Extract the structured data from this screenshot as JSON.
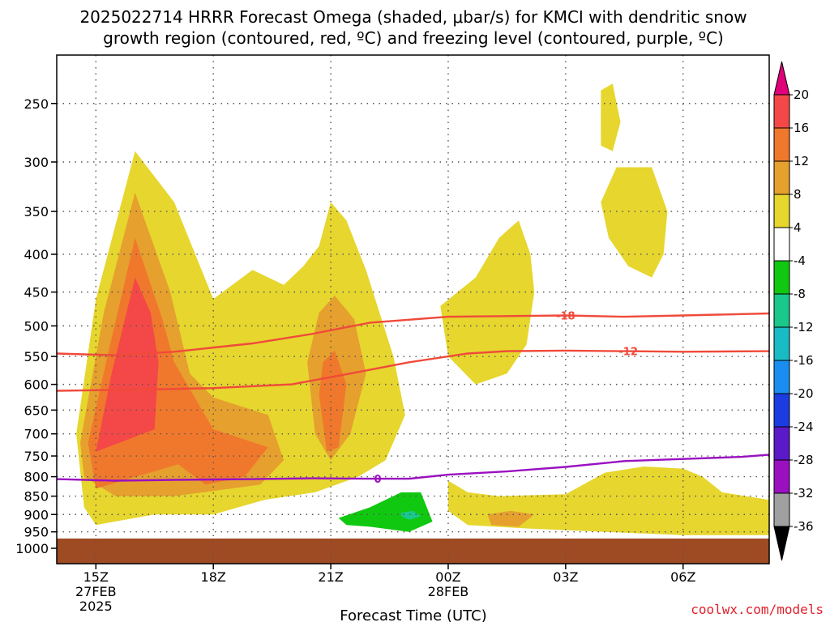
{
  "title_line1": "2025022714 HRRR Forecast Omega (shaded, μbar/s) for KMCI with dendritic snow",
  "title_line2": "growth region (contoured, red, ºC) and freezing level (contoured, purple, ºC)",
  "credit": "coolwx.com/models",
  "chart_data": {
    "type": "time-height cross section (filled contours)",
    "xlabel": "Forecast Time (UTC)",
    "ylabel": "",
    "x_ticks": [
      {
        "label": "15Z",
        "sub": [
          "27FEB",
          "2025"
        ],
        "hour": 15
      },
      {
        "label": "18Z",
        "sub": [],
        "hour": 18
      },
      {
        "label": "21Z",
        "sub": [],
        "hour": 21
      },
      {
        "label": "00Z",
        "sub": [
          "28FEB"
        ],
        "hour": 24
      },
      {
        "label": "03Z",
        "sub": [],
        "hour": 27
      },
      {
        "label": "06Z",
        "sub": [],
        "hour": 30
      }
    ],
    "xlim_hours": [
      14.0,
      32.2
    ],
    "y_ticks": [
      250,
      300,
      350,
      400,
      450,
      500,
      550,
      600,
      650,
      700,
      750,
      800,
      850,
      900,
      950,
      1000
    ],
    "ylim_hpa": [
      1000,
      215
    ],
    "grid": true,
    "colorbar": {
      "labels": [
        "20",
        "16",
        "12",
        "8",
        "4",
        "-4",
        "-8",
        "-12",
        "-16",
        "-20",
        "-24",
        "-28",
        "-32",
        "-36"
      ],
      "bins": [
        {
          "range": ">20",
          "color": "#e0007a"
        },
        {
          "range": "16-20",
          "color": "#f44848"
        },
        {
          "range": "12-16",
          "color": "#f0782c"
        },
        {
          "range": "8-12",
          "color": "#e6a02e"
        },
        {
          "range": "4-8",
          "color": "#e6d62e"
        },
        {
          "range": "-4-4",
          "color": "#ffffff"
        },
        {
          "range": "-8--4",
          "color": "#11c811"
        },
        {
          "range": "-12--8",
          "color": "#19c88a"
        },
        {
          "range": "-16--12",
          "color": "#19bcc4"
        },
        {
          "range": "-20--16",
          "color": "#1a8ef0"
        },
        {
          "range": "-24--20",
          "color": "#1a3ce0"
        },
        {
          "range": "-28--24",
          "color": "#5a1ac8"
        },
        {
          "range": "-32--28",
          "color": "#9a10c0"
        },
        {
          "range": "-36--32",
          "color": "#a0a0a0"
        },
        {
          "range": "<-36",
          "color": "#000000"
        }
      ]
    },
    "contours": [
      {
        "label": "-18",
        "color": "#f04a3a",
        "level_c": -18,
        "points": [
          [
            14.0,
            545
          ],
          [
            15.5,
            548
          ],
          [
            17.0,
            542
          ],
          [
            19.0,
            528
          ],
          [
            20.5,
            513
          ],
          [
            22.0,
            495
          ],
          [
            24.0,
            486
          ],
          [
            25.5,
            485
          ],
          [
            27.0,
            484
          ],
          [
            28.5,
            486
          ],
          [
            30.0,
            484
          ],
          [
            32.2,
            481
          ]
        ]
      },
      {
        "label": "-12",
        "color": "#f04a3a",
        "level_c": -12,
        "points": [
          [
            14.0,
            612
          ],
          [
            16.0,
            610
          ],
          [
            18.0,
            607
          ],
          [
            20.0,
            600
          ],
          [
            21.5,
            580
          ],
          [
            23.0,
            560
          ],
          [
            24.5,
            545
          ],
          [
            25.5,
            541
          ],
          [
            27.0,
            540
          ],
          [
            28.5,
            541
          ],
          [
            30.0,
            542
          ],
          [
            32.2,
            541
          ]
        ]
      },
      {
        "label": "0",
        "color": "#9a10c0",
        "level_c": 0,
        "points": [
          [
            14.0,
            806
          ],
          [
            15.5,
            810
          ],
          [
            17.0,
            808
          ],
          [
            19.0,
            806
          ],
          [
            20.5,
            804
          ],
          [
            22.0,
            805
          ],
          [
            23.0,
            805
          ],
          [
            24.0,
            795
          ],
          [
            25.5,
            787
          ],
          [
            27.0,
            776
          ],
          [
            28.5,
            762
          ],
          [
            30.0,
            757
          ],
          [
            31.5,
            752
          ],
          [
            32.2,
            747
          ]
        ]
      }
    ],
    "shaded_regions": [
      {
        "value_range": "4-8",
        "points": [
          [
            14.5,
            700
          ],
          [
            15.0,
            460
          ],
          [
            16.0,
            290
          ],
          [
            17.0,
            340
          ],
          [
            18.0,
            460
          ],
          [
            19.0,
            420
          ],
          [
            19.8,
            440
          ],
          [
            20.3,
            415
          ],
          [
            20.7,
            390
          ],
          [
            21.0,
            340
          ],
          [
            21.4,
            360
          ],
          [
            21.9,
            420
          ],
          [
            22.6,
            550
          ],
          [
            22.9,
            660
          ],
          [
            22.4,
            760
          ],
          [
            21.7,
            800
          ],
          [
            20.6,
            840
          ],
          [
            19.3,
            860
          ],
          [
            18.0,
            900
          ],
          [
            16.5,
            900
          ],
          [
            15.0,
            930
          ],
          [
            14.7,
            880
          ]
        ]
      },
      {
        "value_range": "8-12",
        "points": [
          [
            14.6,
            720
          ],
          [
            15.2,
            480
          ],
          [
            16.0,
            330
          ],
          [
            16.9,
            450
          ],
          [
            17.4,
            580
          ],
          [
            18.0,
            625
          ],
          [
            19.4,
            660
          ],
          [
            19.8,
            760
          ],
          [
            19.2,
            820
          ],
          [
            17.0,
            850
          ],
          [
            15.5,
            850
          ],
          [
            14.7,
            800
          ]
        ]
      },
      {
        "value_range": "12-16",
        "points": [
          [
            14.8,
            720
          ],
          [
            15.4,
            520
          ],
          [
            16.0,
            380
          ],
          [
            16.7,
            490
          ],
          [
            17.0,
            560
          ],
          [
            18.0,
            690
          ],
          [
            19.4,
            730
          ],
          [
            18.8,
            800
          ],
          [
            17.8,
            820
          ],
          [
            17.1,
            770
          ],
          [
            15.0,
            830
          ]
        ]
      },
      {
        "value_range": "16-20",
        "points": [
          [
            15.0,
            740
          ],
          [
            15.4,
            580
          ],
          [
            16.0,
            430
          ],
          [
            16.4,
            480
          ],
          [
            16.6,
            560
          ],
          [
            16.5,
            690
          ],
          [
            15.6,
            720
          ],
          [
            15.0,
            740
          ]
        ]
      },
      {
        "value_range": "8-12",
        "points": [
          [
            20.7,
            480
          ],
          [
            21.1,
            455
          ],
          [
            21.6,
            490
          ],
          [
            21.9,
            580
          ],
          [
            21.5,
            700
          ],
          [
            21.0,
            760
          ],
          [
            20.6,
            700
          ],
          [
            20.4,
            560
          ]
        ]
      },
      {
        "value_range": "12-16",
        "points": [
          [
            20.8,
            560
          ],
          [
            21.1,
            540
          ],
          [
            21.4,
            600
          ],
          [
            21.2,
            730
          ],
          [
            20.9,
            740
          ],
          [
            20.7,
            620
          ]
        ]
      },
      {
        "value_range": "4-8",
        "points": [
          [
            23.8,
            470
          ],
          [
            24.7,
            430
          ],
          [
            25.3,
            380
          ],
          [
            25.8,
            360
          ],
          [
            26.1,
            400
          ],
          [
            26.2,
            450
          ],
          [
            26.0,
            530
          ],
          [
            25.5,
            580
          ],
          [
            24.7,
            600
          ],
          [
            24.0,
            550
          ]
        ]
      },
      {
        "value_range": "4-8",
        "points": [
          [
            27.9,
            240
          ],
          [
            28.2,
            235
          ],
          [
            28.4,
            265
          ],
          [
            28.2,
            290
          ],
          [
            27.9,
            285
          ]
        ]
      },
      {
        "value_range": "4-8",
        "points": [
          [
            27.9,
            340
          ],
          [
            28.3,
            305
          ],
          [
            29.2,
            305
          ],
          [
            29.6,
            350
          ],
          [
            29.5,
            400
          ],
          [
            29.2,
            430
          ],
          [
            28.6,
            415
          ],
          [
            28.1,
            380
          ]
        ]
      },
      {
        "value_range": "4-8",
        "points": [
          [
            24.0,
            810
          ],
          [
            24.5,
            840
          ],
          [
            25.3,
            850
          ],
          [
            27.0,
            845
          ],
          [
            28.0,
            790
          ],
          [
            29.0,
            775
          ],
          [
            30.0,
            780
          ],
          [
            30.5,
            800
          ],
          [
            31.0,
            840
          ],
          [
            32.2,
            860
          ],
          [
            32.2,
            960
          ],
          [
            30.0,
            960
          ],
          [
            28.0,
            950
          ],
          [
            26.0,
            940
          ],
          [
            24.5,
            930
          ],
          [
            24.0,
            890
          ]
        ]
      },
      {
        "value_range": "8-12",
        "points": [
          [
            25.0,
            900
          ],
          [
            25.6,
            890
          ],
          [
            26.2,
            900
          ],
          [
            25.8,
            935
          ],
          [
            25.1,
            930
          ]
        ]
      },
      {
        "value_range": "-8--4",
        "points": [
          [
            21.2,
            910
          ],
          [
            22.0,
            880
          ],
          [
            22.8,
            840
          ],
          [
            23.3,
            840
          ],
          [
            23.6,
            920
          ],
          [
            23.0,
            950
          ],
          [
            22.0,
            935
          ],
          [
            21.4,
            930
          ]
        ]
      },
      {
        "value_range": "-12--8",
        "points": [
          [
            22.8,
            895
          ],
          [
            23.1,
            890
          ],
          [
            23.3,
            905
          ],
          [
            23.0,
            915
          ],
          [
            22.8,
            905
          ]
        ]
      }
    ],
    "ground": {
      "color": "#9e4a22",
      "from_hpa": 970,
      "to_hpa": 1000
    }
  }
}
